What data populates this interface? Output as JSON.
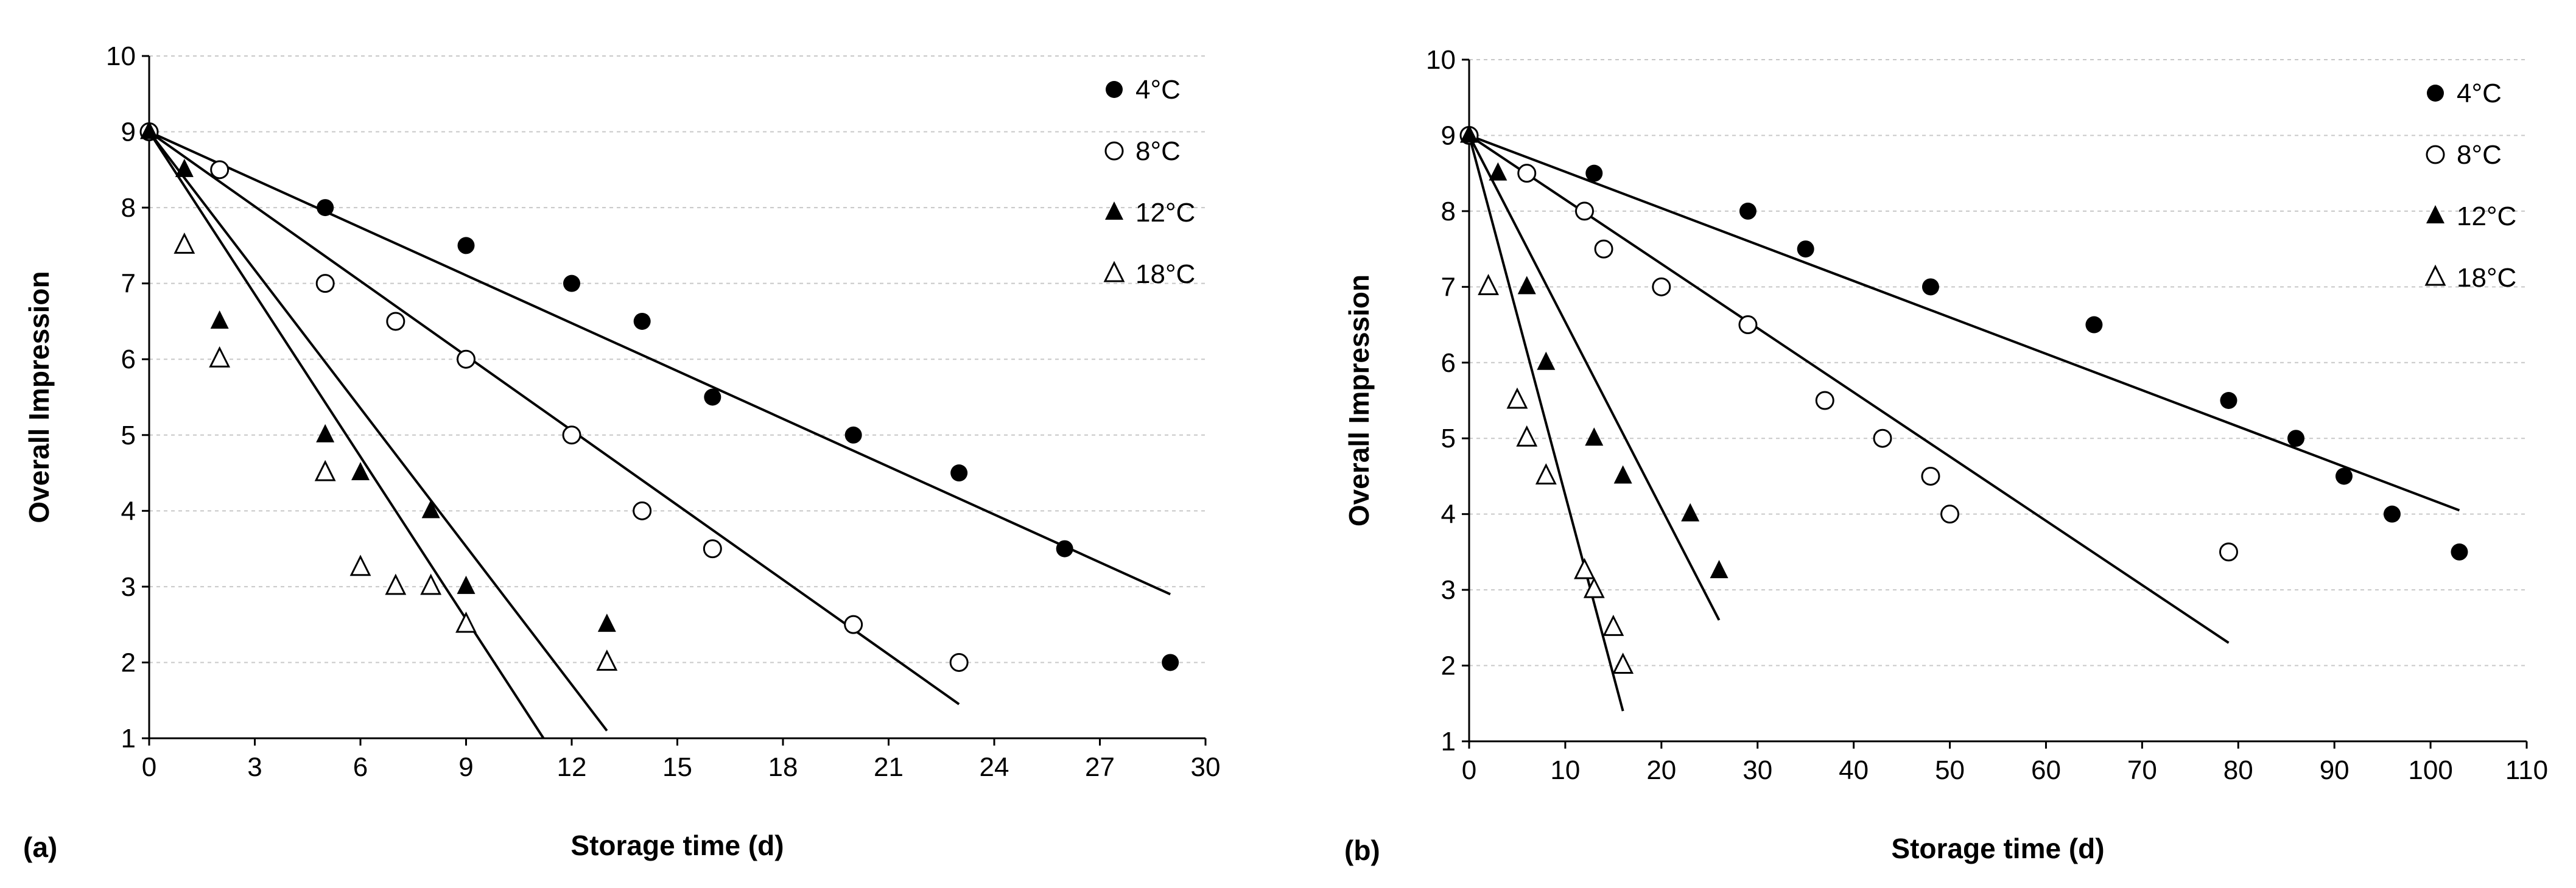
{
  "chart_data": [
    {
      "type": "scatter",
      "panel_label": "(a)",
      "xlabel": "Storage time (d)",
      "ylabel": "Overall Impression",
      "xlim": [
        0,
        30
      ],
      "ylim": [
        1,
        10
      ],
      "x_ticks": [
        "0",
        "3",
        "6",
        "9",
        "12",
        "15",
        "18",
        "21",
        "24",
        "27",
        "30"
      ],
      "y_ticks": [
        "1",
        "2",
        "3",
        "4",
        "5",
        "6",
        "7",
        "8",
        "9",
        "10"
      ],
      "grid": true,
      "legend_position": "top-right",
      "series": [
        {
          "name": "4°C",
          "marker": "filled-circle",
          "x": [
            0,
            5,
            9,
            12,
            14,
            16,
            20,
            23,
            26,
            29
          ],
          "y": [
            9,
            8,
            7.5,
            7,
            6.5,
            5.5,
            5,
            4.5,
            3.5,
            2
          ],
          "fit": [
            [
              0,
              9
            ],
            [
              29,
              2.9
            ]
          ]
        },
        {
          "name": "8°C",
          "marker": "open-circle",
          "x": [
            0,
            2,
            5,
            7,
            9,
            12,
            14,
            16,
            20,
            23
          ],
          "y": [
            9,
            8.5,
            7,
            6.5,
            6,
            5,
            4,
            3.5,
            2.5,
            2
          ],
          "fit": [
            [
              0,
              9
            ],
            [
              23,
              1.45
            ]
          ]
        },
        {
          "name": "12°C",
          "marker": "filled-triangle",
          "x": [
            0,
            1,
            2,
            5,
            6,
            8,
            9,
            13
          ],
          "y": [
            9,
            8.5,
            6.5,
            5,
            4.5,
            4,
            3,
            2.5
          ],
          "fit": [
            [
              0,
              9
            ],
            [
              13,
              1.1
            ]
          ]
        },
        {
          "name": "18°C",
          "marker": "open-triangle",
          "x": [
            1,
            2,
            5,
            6,
            7,
            8,
            9,
            13
          ],
          "y": [
            7.5,
            6,
            4.5,
            3.25,
            3,
            3,
            2.5,
            2
          ],
          "fit": [
            [
              0,
              9
            ],
            [
              11.2,
              1
            ]
          ]
        }
      ]
    },
    {
      "type": "scatter",
      "panel_label": "(b)",
      "xlabel": "Storage time (d)",
      "ylabel": "Overall Impression",
      "xlim": [
        0,
        110
      ],
      "ylim": [
        1,
        10
      ],
      "x_ticks": [
        "0",
        "10",
        "20",
        "30",
        "40",
        "50",
        "60",
        "70",
        "80",
        "90",
        "100",
        "110"
      ],
      "y_ticks": [
        "1",
        "2",
        "3",
        "4",
        "5",
        "6",
        "7",
        "8",
        "9",
        "10"
      ],
      "grid": true,
      "legend_position": "top-right",
      "series": [
        {
          "name": "4°C",
          "marker": "filled-circle",
          "x": [
            0,
            13,
            29,
            35,
            48,
            65,
            79,
            86,
            91,
            96,
            103
          ],
          "y": [
            9,
            8.5,
            8,
            7.5,
            7,
            6.5,
            5.5,
            5,
            4.5,
            4,
            3.5
          ],
          "fit": [
            [
              0,
              9
            ],
            [
              103,
              4.05
            ]
          ]
        },
        {
          "name": "8°C",
          "marker": "open-circle",
          "x": [
            0,
            6,
            12,
            14,
            20,
            29,
            37,
            43,
            48,
            50,
            79
          ],
          "y": [
            9,
            8.5,
            8,
            7.5,
            7,
            6.5,
            5.5,
            5,
            4.5,
            4,
            3.5
          ],
          "fit": [
            [
              0,
              9
            ],
            [
              79,
              2.3
            ]
          ]
        },
        {
          "name": "12°C",
          "marker": "filled-triangle",
          "x": [
            0,
            3,
            6,
            8,
            13,
            16,
            23,
            26
          ],
          "y": [
            9,
            8.5,
            7,
            6,
            5,
            4.5,
            4,
            3.25
          ],
          "fit": [
            [
              0,
              9
            ],
            [
              26,
              2.6
            ]
          ]
        },
        {
          "name": "18°C",
          "marker": "open-triangle",
          "x": [
            2,
            5,
            6,
            8,
            12,
            13,
            15,
            16
          ],
          "y": [
            7,
            5.5,
            5,
            4.5,
            3.25,
            3,
            2.5,
            2
          ],
          "fit": [
            [
              0,
              9
            ],
            [
              16,
              1.4
            ]
          ]
        }
      ]
    }
  ]
}
